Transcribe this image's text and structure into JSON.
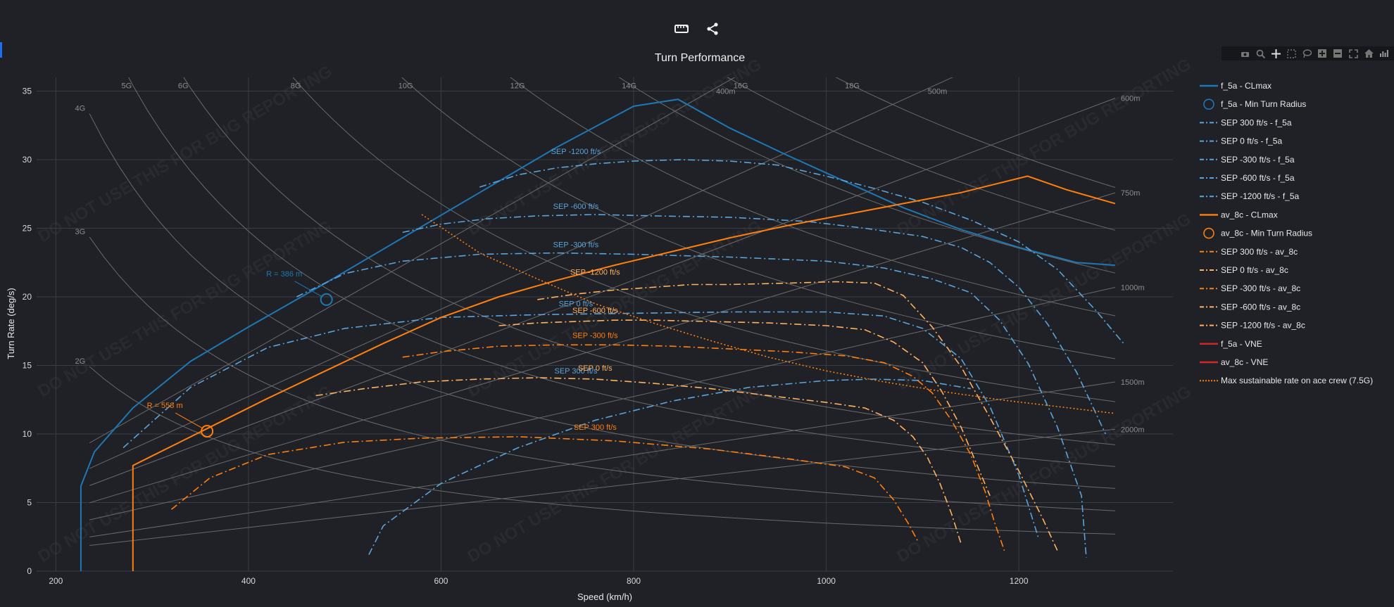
{
  "toolbar": {
    "ruler_icon": "ruler-icon",
    "share_icon": "share-icon"
  },
  "modebar": [
    "camera-icon",
    "zoom-icon",
    "pan-icon",
    "box-select-icon",
    "lasso-icon",
    "zoom-in-icon",
    "zoom-out-icon",
    "autoscale-icon",
    "reset-axes-icon",
    "plotly-logo-icon"
  ],
  "colors": {
    "blue": "#1f77b4",
    "blue_light": "#5ba3d9",
    "orange": "#ff7f0e",
    "orange_light": "#ffb060",
    "red": "#d62728",
    "grid": "#3a3d44",
    "guide": "#6a6a6a"
  },
  "watermark": "DO NOT USE THIS FOR BUG REPORTING",
  "chart_data": {
    "type": "line",
    "title": "Turn Performance",
    "xlabel": "Speed (km/h)",
    "ylabel": "Turn Rate (deg/s)",
    "xlim": [
      180,
      1360
    ],
    "ylim": [
      0,
      36
    ],
    "xticks": [
      200,
      400,
      600,
      800,
      1000,
      1200
    ],
    "yticks": [
      0,
      5,
      10,
      15,
      20,
      25,
      30,
      35
    ],
    "gridlines": true,
    "legend_position": "right",
    "g_lines": [
      {
        "label": "2G",
        "g": 2
      },
      {
        "label": "3G",
        "g": 3
      },
      {
        "label": "4G",
        "g": 4
      },
      {
        "label": "5G",
        "g": 5
      },
      {
        "label": "6G",
        "g": 6
      },
      {
        "label": "8G",
        "g": 8
      },
      {
        "label": "10G",
        "g": 10
      },
      {
        "label": "12G",
        "g": 12
      },
      {
        "label": "14G",
        "g": 14
      },
      {
        "label": "16G",
        "g": 16
      },
      {
        "label": "18G",
        "g": 18
      }
    ],
    "radius_lines": [
      {
        "label": "400m",
        "r": 400
      },
      {
        "label": "500m",
        "r": 500
      },
      {
        "label": "600m",
        "r": 600
      },
      {
        "label": "750m",
        "r": 750
      },
      {
        "label": "1000m",
        "r": 1000
      },
      {
        "label": "1500m",
        "r": 1500
      },
      {
        "label": "2000m",
        "r": 2000
      }
    ],
    "series": [
      {
        "name": "f_5a - CLmax",
        "kind": "solid",
        "color": "blue",
        "x": [
          226,
          226,
          240,
          280,
          340,
          400,
          480,
          560,
          640,
          720,
          800,
          846,
          900,
          960,
          1020,
          1080,
          1140,
          1200,
          1260,
          1300
        ],
        "y": [
          0,
          6.2,
          8.7,
          11.9,
          15.3,
          17.8,
          21.0,
          24.3,
          27.6,
          30.9,
          33.9,
          34.4,
          32.3,
          30.3,
          28.4,
          26.5,
          24.9,
          23.6,
          22.5,
          22.3
        ]
      },
      {
        "name": "f_5a - Min Turn Radius",
        "kind": "marker",
        "color": "blue",
        "x": [
          481
        ],
        "y": [
          19.8
        ],
        "annotation": "R = 386 m"
      },
      {
        "name": "SEP 300 ft/s - f_5a",
        "kind": "dashdot",
        "color": "blue_light",
        "x": [
          525,
          540,
          600,
          680,
          760,
          840,
          920,
          1000,
          1050,
          1100,
          1150
        ],
        "y": [
          1.2,
          3.3,
          6.4,
          9.0,
          11.0,
          12.4,
          13.4,
          13.9,
          14.0,
          13.9,
          13.3
        ],
        "annotation": "SEP 300 ft/s"
      },
      {
        "name": "SEP 0 ft/s - f_5a",
        "kind": "dashdot",
        "color": "blue_light",
        "x": [
          270,
          340,
          420,
          500,
          600,
          700,
          800,
          900,
          1000,
          1060,
          1100,
          1140,
          1170,
          1200,
          1220
        ],
        "y": [
          9.0,
          13.4,
          16.3,
          17.7,
          18.5,
          18.7,
          18.8,
          18.9,
          18.9,
          18.6,
          17.7,
          15.5,
          12.0,
          7.0,
          2.5
        ],
        "annotation": "SEP 0 ft/s"
      },
      {
        "name": "SEP -300 ft/s - f_5a",
        "kind": "dashdot",
        "color": "blue_light",
        "x": [
          450,
          500,
          560,
          640,
          720,
          800,
          900,
          1000,
          1060,
          1110,
          1150,
          1180,
          1210,
          1240,
          1265,
          1270
        ],
        "y": [
          20.0,
          21.7,
          22.6,
          23.1,
          23.2,
          23.1,
          22.9,
          22.6,
          22.1,
          21.3,
          20.3,
          18.3,
          15.1,
          10.5,
          5.5,
          1.0
        ],
        "annotation": "SEP -300 ft/s"
      },
      {
        "name": "SEP -600 ft/s - f_5a",
        "kind": "dashdot",
        "color": "blue_light",
        "x": [
          560,
          600,
          650,
          700,
          760,
          820,
          900,
          980,
          1040,
          1100,
          1140,
          1170,
          1200,
          1230,
          1260,
          1290
        ],
        "y": [
          24.7,
          25.3,
          25.7,
          25.9,
          26.0,
          25.9,
          25.8,
          25.5,
          25.0,
          24.4,
          23.6,
          22.5,
          20.7,
          18.0,
          14.5,
          10.0
        ],
        "annotation": "SEP -600 ft/s"
      },
      {
        "name": "SEP -1200 ft/s - f_5a",
        "kind": "dashdot",
        "color": "blue_light",
        "x": [
          640,
          680,
          720,
          760,
          800,
          850,
          900,
          950,
          1000,
          1050,
          1100,
          1150,
          1200,
          1240,
          1280,
          1310
        ],
        "y": [
          28.0,
          28.9,
          29.4,
          29.7,
          29.9,
          30.0,
          29.9,
          29.6,
          28.8,
          27.9,
          26.9,
          25.6,
          24.0,
          22.0,
          19.0,
          16.5
        ],
        "annotation": "SEP -1200 ft/s"
      },
      {
        "name": "av_8c - CLmax",
        "kind": "solid",
        "color": "orange",
        "x": [
          280,
          280,
          300,
          360,
          420,
          480,
          540,
          600,
          660,
          720,
          780,
          840,
          900,
          960,
          1020,
          1080,
          1140,
          1209,
          1250,
          1300
        ],
        "y": [
          0,
          7.7,
          8.4,
          10.5,
          12.6,
          14.6,
          16.6,
          18.5,
          20.0,
          21.2,
          22.3,
          23.3,
          24.3,
          25.2,
          26.0,
          26.8,
          27.6,
          28.8,
          27.8,
          26.8
        ],
        "annotation": ""
      },
      {
        "name": "av_8c - Min Turn Radius",
        "kind": "marker",
        "color": "orange",
        "x": [
          357
        ],
        "y": [
          10.2
        ],
        "annotation": "R = 558 m"
      },
      {
        "name": "SEP 300 ft/s - av_8c",
        "kind": "dashdot",
        "color": "orange",
        "x": [
          320,
          360,
          420,
          500,
          580,
          680,
          780,
          880,
          960,
          1020,
          1050,
          1070,
          1085,
          1095
        ],
        "y": [
          4.5,
          6.8,
          8.5,
          9.4,
          9.7,
          9.8,
          9.5,
          8.9,
          8.2,
          7.6,
          6.8,
          5.2,
          3.5,
          2.2
        ],
        "annotation": "SEP 300 ft/s"
      },
      {
        "name": "SEP 0 ft/s - av_8c",
        "kind": "dashdot",
        "color": "orange_light",
        "x": [
          470,
          520,
          580,
          640,
          700,
          760,
          820,
          880,
          940,
          1000,
          1040,
          1070,
          1090,
          1105,
          1118,
          1130,
          1140
        ],
        "y": [
          12.8,
          13.3,
          13.8,
          14.0,
          14.1,
          14.0,
          13.7,
          13.3,
          12.8,
          12.3,
          11.9,
          11.0,
          9.8,
          8.3,
          6.4,
          4.2,
          2.0
        ],
        "annotation": "SEP 0 ft/s"
      },
      {
        "name": "SEP -300 ft/s - av_8c",
        "kind": "dashdot",
        "color": "orange",
        "x": [
          560,
          600,
          660,
          720,
          780,
          840,
          900,
          960,
          1020,
          1060,
          1090,
          1110,
          1130,
          1150,
          1165,
          1175,
          1185
        ],
        "y": [
          15.6,
          16.0,
          16.4,
          16.5,
          16.5,
          16.4,
          16.2,
          16.0,
          15.7,
          15.2,
          14.2,
          13.0,
          11.0,
          8.5,
          5.8,
          3.5,
          1.5
        ],
        "annotation": "SEP -300 ft/s"
      },
      {
        "name": "SEP -600 ft/s - av_8c",
        "kind": "dashdot",
        "color": "orange_light",
        "x": [
          660,
          700,
          740,
          780,
          820,
          880,
          940,
          1000,
          1040,
          1070,
          1100,
          1120,
          1140,
          1155,
          1170
        ],
        "y": [
          17.9,
          18.1,
          18.2,
          18.3,
          18.3,
          18.2,
          18.1,
          17.9,
          17.6,
          16.7,
          15.2,
          13.1,
          10.5,
          8.0,
          5.5
        ],
        "annotation": "SEP -600 ft/s"
      },
      {
        "name": "SEP -1200 ft/s - av_8c",
        "kind": "dashdot",
        "color": "orange_light",
        "x": [
          700,
          740,
          780,
          820,
          860,
          900,
          960,
          1010,
          1050,
          1080,
          1110,
          1140,
          1170,
          1200,
          1225,
          1240
        ],
        "y": [
          19.8,
          20.2,
          20.5,
          20.7,
          20.9,
          20.9,
          21.0,
          21.1,
          21.0,
          20.1,
          17.8,
          14.9,
          11.2,
          7.3,
          3.8,
          1.5
        ],
        "annotation": "SEP -1200 ft/s"
      },
      {
        "name": "f_5a - VNE",
        "kind": "legend_only",
        "color": "red",
        "x": [],
        "y": []
      },
      {
        "name": "av_8c - VNE",
        "kind": "legend_only",
        "color": "red",
        "x": [],
        "y": []
      },
      {
        "name": "Max sustainable rate on ace crew (7.5G)",
        "kind": "dotted",
        "color": "orange",
        "x": [
          580,
          640,
          700,
          760,
          820,
          880,
          940,
          1000,
          1060,
          1120,
          1180,
          1240,
          1300
        ],
        "y": [
          26.0,
          23.2,
          21.3,
          19.5,
          18.1,
          16.8,
          15.6,
          14.6,
          13.8,
          13.1,
          12.5,
          12.0,
          11.5
        ]
      }
    ]
  }
}
